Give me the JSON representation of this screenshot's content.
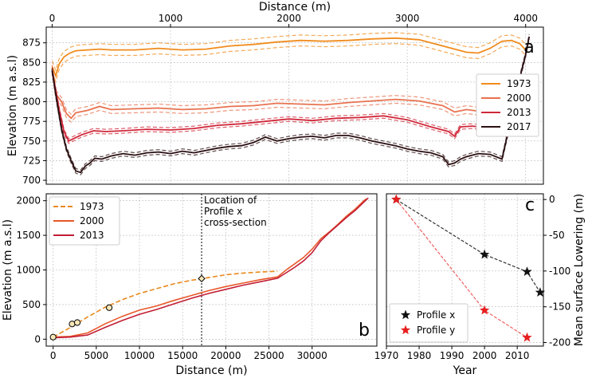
{
  "chart_data": [
    {
      "id": "a",
      "type": "line",
      "panel_label": "a",
      "title": "",
      "xlabel": "Distance (m)",
      "xlabel_position": "top",
      "ylabel": "Elevation (m a.s.l)",
      "xlim": [
        -50,
        4150
      ],
      "ylim": [
        695,
        895
      ],
      "xticks": [
        0,
        1000,
        2000,
        3000,
        4000
      ],
      "yticks": [
        700,
        725,
        750,
        775,
        800,
        825,
        850,
        875
      ],
      "grid": true,
      "legend_position": "right",
      "series": [
        {
          "name": "1973",
          "color": "#f08c1e",
          "band": 7,
          "x": [
            0,
            30,
            60,
            100,
            150,
            200,
            300,
            400,
            500,
            700,
            900,
            1100,
            1300,
            1500,
            1700,
            1900,
            2100,
            2300,
            2500,
            2700,
            2900,
            3100,
            3300,
            3500,
            3600,
            3700,
            3800,
            3880,
            3950,
            4000
          ],
          "y": [
            845,
            833,
            848,
            857,
            862,
            865,
            866,
            867,
            866,
            866,
            868,
            866,
            867,
            871,
            873,
            876,
            878,
            877,
            878,
            880,
            881,
            879,
            871,
            863,
            862,
            868,
            877,
            878,
            874,
            866
          ]
        },
        {
          "name": "2000",
          "color": "#e8724f",
          "band": 5,
          "x": [
            0,
            30,
            80,
            120,
            160,
            200,
            300,
            400,
            500,
            700,
            900,
            1100,
            1300,
            1500,
            1700,
            1900,
            2100,
            2300,
            2500,
            2700,
            2900,
            3100,
            3300,
            3400,
            3500,
            3600,
            3700,
            3800,
            3870,
            3920
          ],
          "y": [
            842,
            810,
            800,
            785,
            779,
            786,
            789,
            794,
            790,
            791,
            792,
            790,
            791,
            794,
            795,
            798,
            797,
            796,
            799,
            801,
            803,
            801,
            795,
            787,
            790,
            788,
            790,
            794,
            792,
            790
          ]
        },
        {
          "name": "2013",
          "color": "#d0283a",
          "band": 3,
          "x": [
            0,
            30,
            60,
            100,
            140,
            180,
            250,
            350,
            450,
            600,
            800,
            1000,
            1200,
            1400,
            1600,
            1800,
            2000,
            2200,
            2400,
            2600,
            2800,
            3000,
            3200,
            3350,
            3400,
            3450,
            3550,
            3650,
            3750,
            3850
          ],
          "y": [
            840,
            815,
            790,
            762,
            750,
            753,
            758,
            763,
            762,
            763,
            765,
            764,
            766,
            770,
            772,
            775,
            778,
            776,
            779,
            780,
            782,
            777,
            768,
            762,
            756,
            768,
            769,
            767,
            766,
            757
          ]
        },
        {
          "name": "2017",
          "color": "#2b1012",
          "band": 3,
          "x": [
            0,
            40,
            80,
            120,
            160,
            200,
            240,
            280,
            320,
            360,
            420,
            500,
            600,
            700,
            800,
            900,
            1000,
            1100,
            1200,
            1300,
            1400,
            1500,
            1600,
            1700,
            1800,
            1900,
            2000,
            2100,
            2200,
            2300,
            2400,
            2500,
            2600,
            2700,
            2800,
            2900,
            3000,
            3100,
            3200,
            3300,
            3350,
            3400,
            3450,
            3500,
            3600,
            3700,
            3800,
            3850,
            3900,
            3950,
            4000,
            4030
          ],
          "y": [
            840,
            800,
            765,
            740,
            725,
            712,
            710,
            718,
            722,
            728,
            727,
            731,
            734,
            732,
            735,
            736,
            734,
            737,
            735,
            738,
            741,
            743,
            744,
            748,
            755,
            750,
            753,
            755,
            756,
            754,
            757,
            757,
            754,
            750,
            747,
            744,
            740,
            737,
            735,
            730,
            720,
            722,
            727,
            730,
            734,
            733,
            727,
            760,
            800,
            830,
            860,
            883
          ]
        }
      ]
    },
    {
      "id": "b",
      "type": "line",
      "panel_label": "b",
      "title": "",
      "xlabel": "Distance (m)",
      "ylabel": "Elevation (m a.s.l)",
      "xlim": [
        -800,
        37500
      ],
      "ylim": [
        -100,
        2100
      ],
      "xticks": [
        0,
        5000,
        10000,
        15000,
        20000,
        25000,
        30000
      ],
      "yticks": [
        0,
        500,
        1000,
        1500,
        2000
      ],
      "grid": true,
      "legend_position": "top-left",
      "annotation": {
        "x": 17200,
        "lines": [
          "Location of",
          "Profile x",
          "cross-section"
        ]
      },
      "series": [
        {
          "name": "1973",
          "color": "#e8891c",
          "dashed": true,
          "x": [
            0,
            2000,
            4000,
            6000,
            8000,
            10000,
            12000,
            14000,
            16000,
            18000,
            20000,
            22000,
            24000,
            26000
          ],
          "y": [
            30,
            170,
            320,
            460,
            570,
            660,
            730,
            800,
            850,
            890,
            930,
            955,
            970,
            980
          ]
        },
        {
          "name": "2000",
          "color": "#e8572a",
          "x": [
            0,
            2000,
            4000,
            6000,
            8000,
            10000,
            12000,
            14000,
            16000,
            18000,
            20000,
            22000,
            24000,
            26000,
            27000,
            28000,
            29000,
            30000,
            31000,
            32000,
            33000,
            34000,
            35000,
            36000,
            36300
          ],
          "y": [
            30,
            40,
            90,
            220,
            330,
            420,
            480,
            560,
            630,
            700,
            760,
            810,
            860,
            900,
            1000,
            1090,
            1180,
            1300,
            1450,
            1550,
            1660,
            1780,
            1880,
            2000,
            2030
          ]
        },
        {
          "name": "2013",
          "color": "#c21e35",
          "x": [
            0,
            2000,
            4000,
            6000,
            8000,
            10000,
            12000,
            14000,
            16000,
            18000,
            20000,
            22000,
            24000,
            26000,
            27000,
            28000,
            29000,
            30000,
            31000,
            32000,
            33000,
            34000,
            35000,
            36000,
            36500
          ],
          "y": [
            20,
            30,
            60,
            170,
            270,
            360,
            430,
            510,
            590,
            660,
            720,
            780,
            830,
            880,
            960,
            1040,
            1130,
            1250,
            1420,
            1540,
            1650,
            1760,
            1860,
            1980,
            2040
          ]
        }
      ],
      "markers": [
        {
          "x": 0,
          "y": 30,
          "shape": "circle"
        },
        {
          "x": 2200,
          "y": 220,
          "shape": "circle"
        },
        {
          "x": 2800,
          "y": 240,
          "shape": "circle"
        },
        {
          "x": 6500,
          "y": 455,
          "shape": "circle"
        },
        {
          "x": 17200,
          "y": 875,
          "shape": "diamond"
        }
      ]
    },
    {
      "id": "c",
      "type": "line",
      "panel_label": "c",
      "title": "",
      "xlabel": "Year",
      "ylabel": "Mean surface Lowering (m)",
      "ylabel_position": "right",
      "xlim": [
        1970,
        2018
      ],
      "ylim": [
        -205,
        8
      ],
      "xticks": [
        1970,
        1980,
        1990,
        2000,
        2010
      ],
      "yticks": [
        0,
        -50,
        -100,
        -150,
        -200
      ],
      "grid": true,
      "legend_position": "bottom-left",
      "series": [
        {
          "name": "Profile x",
          "color": "#333333",
          "marker_color": "#111111",
          "x": [
            1973,
            2000,
            2013,
            2017
          ],
          "y": [
            0,
            -77,
            -101,
            -130
          ]
        },
        {
          "name": "Profile y",
          "color": "#f06060",
          "marker_color": "#e81e1e",
          "x": [
            1973,
            2000,
            2013
          ],
          "y": [
            0,
            -155,
            -193
          ]
        }
      ]
    }
  ]
}
